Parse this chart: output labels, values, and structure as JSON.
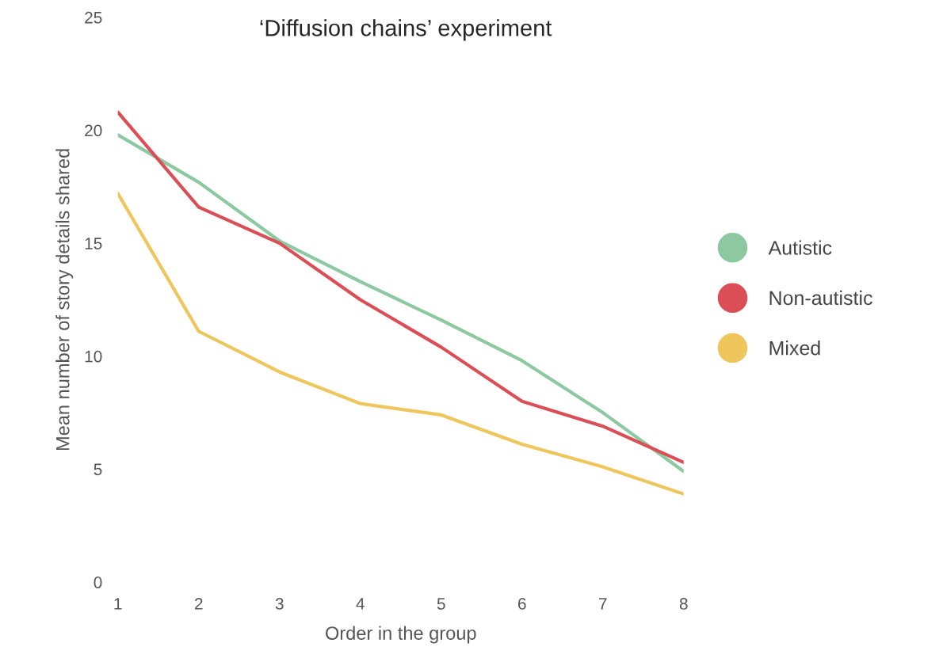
{
  "chart_data": {
    "type": "line",
    "title": "‘Diffusion chains’ experiment",
    "xlabel": "Order in the group",
    "ylabel": "Mean number of story details shared",
    "x": [
      1,
      2,
      3,
      4,
      5,
      6,
      7,
      8
    ],
    "series": [
      {
        "name": "Autistic",
        "color": "#8cc8a0",
        "values": [
          19.8,
          17.7,
          15.1,
          13.3,
          11.6,
          9.8,
          7.5,
          4.9
        ]
      },
      {
        "name": "Non-autistic",
        "color": "#db4e55",
        "values": [
          20.8,
          16.6,
          15.0,
          12.5,
          10.4,
          8.0,
          6.9,
          5.3
        ]
      },
      {
        "name": "Mixed",
        "color": "#efc65c",
        "values": [
          17.2,
          11.1,
          9.3,
          7.9,
          7.4,
          6.1,
          5.1,
          3.9
        ]
      }
    ],
    "xlim": [
      1,
      8
    ],
    "xticks": [
      1,
      2,
      3,
      4,
      5,
      6,
      7,
      8
    ],
    "ylim": [
      0,
      25
    ],
    "yticks": [
      0,
      5,
      10,
      15,
      20,
      25
    ],
    "grid": false,
    "legend": "right",
    "marker": "none",
    "line_style": "solid"
  }
}
